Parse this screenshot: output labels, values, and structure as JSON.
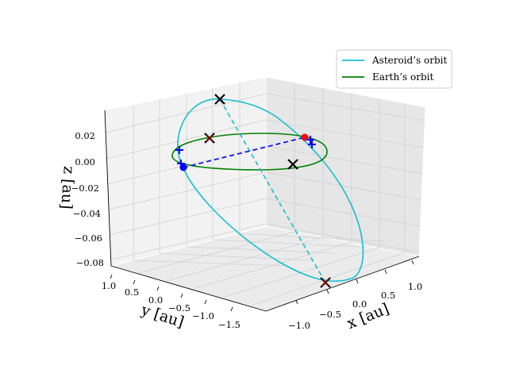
{
  "chart_data": {
    "type": "line",
    "projection": "3d",
    "title": "",
    "xlabel": "x [au]",
    "ylabel": "y [au]",
    "zlabel": "z [au]",
    "xlim": [
      -1.5,
      1.3
    ],
    "ylim": [
      -1.9,
      1.35
    ],
    "zlim": [
      -0.085,
      0.035
    ],
    "xticks": [
      -1.0,
      -0.5,
      0.0,
      0.5,
      1.0
    ],
    "xtick_labels": [
      "−1.0",
      "−0.5",
      "0.0",
      "0.5",
      "1.0"
    ],
    "yticks": [
      1.0,
      0.5,
      0.0,
      -0.5,
      -1.0,
      -1.5
    ],
    "ytick_labels": [
      "1.0",
      "0.5",
      "0.0",
      "−0.5",
      "−1.0",
      "−1.5"
    ],
    "zticks": [
      0.02,
      0.0,
      -0.02,
      -0.04,
      -0.06,
      -0.08
    ],
    "ztick_labels": [
      "0.02",
      "0.00",
      "−0.02",
      "−0.04",
      "−0.06",
      "−0.08"
    ],
    "grid": true,
    "legend_position": "top-right",
    "series": [
      {
        "name": "Asteroid’s orbit",
        "kind": "line",
        "color": "#17becf",
        "orbit": {
          "a": 1.55,
          "e": 0.55,
          "focus": [
            0.0,
            0.0,
            0.0
          ],
          "inclination_deg": 3.6,
          "apsides": [
            [
              -1.25,
              -1.35,
              -0.082
            ],
            [
              0.47,
              0.3,
              0.029
            ]
          ]
        }
      },
      {
        "name": "Earth’s orbit",
        "kind": "line",
        "color": "#008000",
        "orbit": {
          "a": 1.0,
          "e": 0.0,
          "focus": [
            0.0,
            0.0,
            0.0
          ],
          "inclination_deg": 0.0
        }
      }
    ],
    "markers": [
      {
        "type": "line_of_nodes",
        "style": "dashed",
        "color": "#0000ff",
        "from": [
          0.79,
          -0.62,
          0.0
        ],
        "to": [
          -0.79,
          0.62,
          0.0
        ]
      },
      {
        "type": "line_of_apsides",
        "style": "dashed",
        "color": "#17becf",
        "from": [
          -1.25,
          -1.35,
          -0.082
        ],
        "to": [
          0.47,
          0.3,
          0.029
        ]
      },
      {
        "type": "point",
        "symbol": "dot",
        "color": "#0000ff",
        "at": [
          -0.79,
          0.62,
          0.0
        ]
      },
      {
        "type": "point",
        "symbol": "dot",
        "color": "#ff0000",
        "at": [
          0.79,
          -0.62,
          0.0
        ]
      },
      {
        "type": "point",
        "symbol": "x",
        "color": "#000000",
        "at": [
          0.0,
          -1.0,
          0.0
        ]
      },
      {
        "type": "point",
        "symbol": "x",
        "color": "#000000",
        "at": [
          0.47,
          0.3,
          0.029
        ]
      },
      {
        "type": "point",
        "symbol": "x",
        "color": "#000000",
        "at": [
          -1.25,
          -1.35,
          -0.082
        ]
      },
      {
        "type": "point",
        "symbol": "x",
        "color": "#8b0000",
        "at": [
          -1.25,
          -1.35,
          -0.082
        ]
      },
      {
        "type": "point",
        "symbol": "x",
        "color": "#8b0000",
        "at": [
          0.62,
          0.78,
          0.0
        ]
      },
      {
        "type": "point",
        "symbol": "x",
        "color": "#000000",
        "at": [
          0.62,
          0.78,
          0.0
        ]
      },
      {
        "type": "point",
        "symbol": "plus",
        "color": "#0000ff",
        "at": [
          -0.68,
          0.8,
          0.004
        ]
      },
      {
        "type": "point",
        "symbol": "plus",
        "color": "#0000ff",
        "at": [
          -0.86,
          0.56,
          -0.001
        ]
      },
      {
        "type": "point",
        "symbol": "plus",
        "color": "#0000ff",
        "at": [
          0.73,
          -0.74,
          0.002
        ]
      },
      {
        "type": "point",
        "symbol": "plus",
        "color": "#0000ff",
        "at": [
          0.84,
          -0.52,
          -0.001
        ]
      }
    ]
  }
}
